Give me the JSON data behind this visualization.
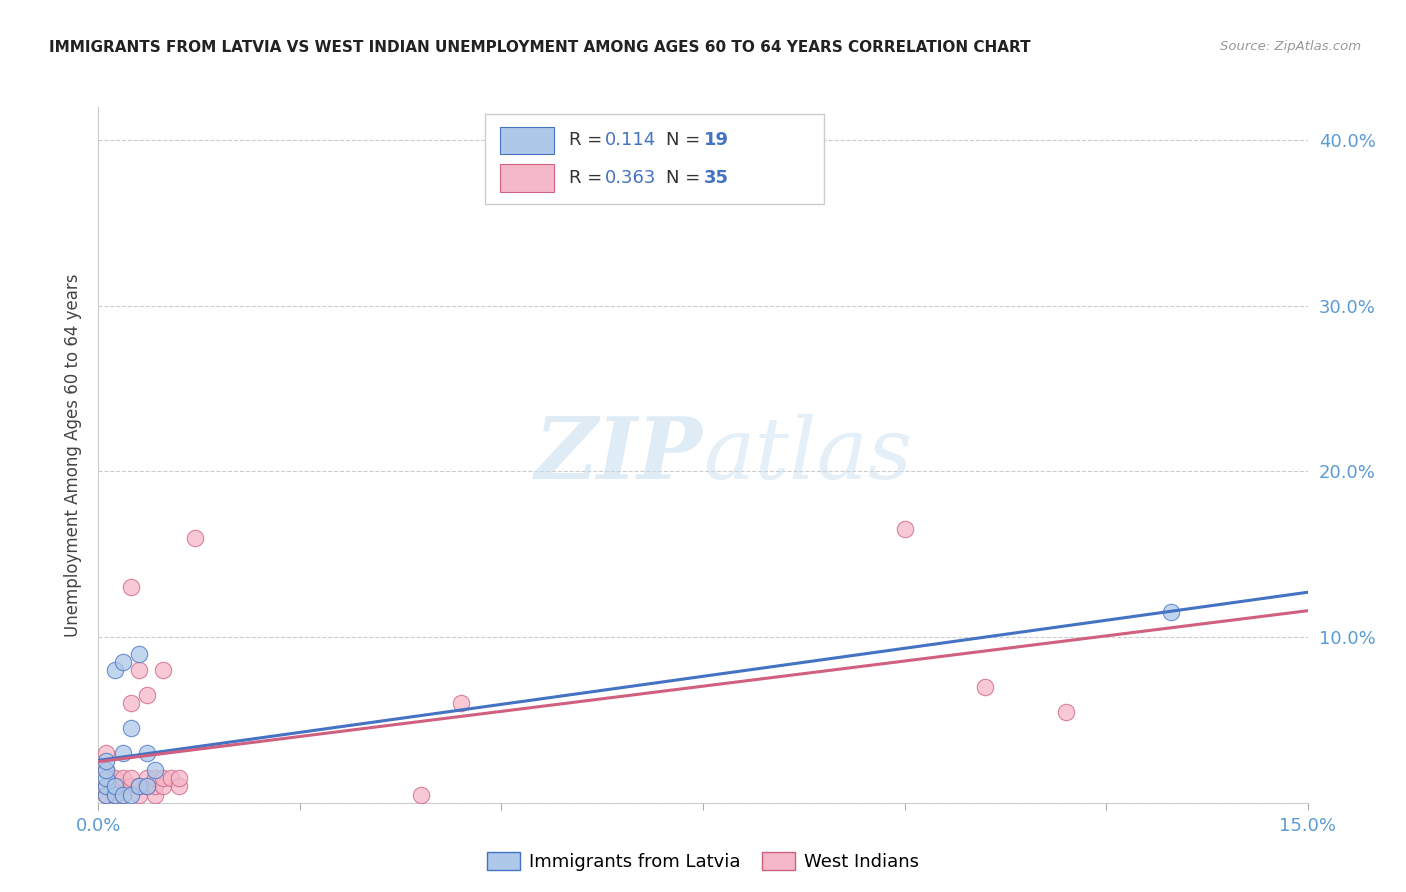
{
  "title": "IMMIGRANTS FROM LATVIA VS WEST INDIAN UNEMPLOYMENT AMONG AGES 60 TO 64 YEARS CORRELATION CHART",
  "source": "Source: ZipAtlas.com",
  "ylabel": "Unemployment Among Ages 60 to 64 years",
  "xlim": [
    0.0,
    0.15
  ],
  "ylim": [
    0.0,
    0.42
  ],
  "xticks": [
    0.0,
    0.025,
    0.05,
    0.075,
    0.1,
    0.125,
    0.15
  ],
  "yticks_right": [
    0.0,
    0.1,
    0.2,
    0.3,
    0.4
  ],
  "ytick_labels_right": [
    "",
    "10.0%",
    "20.0%",
    "30.0%",
    "40.0%"
  ],
  "latvia_R": "0.114",
  "latvia_N": "19",
  "west_indian_R": "0.363",
  "west_indian_N": "35",
  "latvia_color": "#adc8e8",
  "latvia_edge_color": "#4472c4",
  "west_indian_color": "#f5b8c8",
  "west_indian_edge_color": "#d06080",
  "scatter_alpha": 0.75,
  "scatter_size": 140,
  "watermark_zip": "ZIP",
  "watermark_atlas": "atlas",
  "background_color": "#ffffff",
  "latvia_x": [
    0.001,
    0.001,
    0.001,
    0.001,
    0.001,
    0.002,
    0.002,
    0.002,
    0.003,
    0.003,
    0.003,
    0.004,
    0.004,
    0.005,
    0.005,
    0.006,
    0.006,
    0.007,
    0.133
  ],
  "latvia_y": [
    0.005,
    0.01,
    0.015,
    0.02,
    0.025,
    0.005,
    0.01,
    0.08,
    0.005,
    0.085,
    0.03,
    0.045,
    0.005,
    0.01,
    0.09,
    0.01,
    0.03,
    0.02,
    0.115
  ],
  "west_indian_x": [
    0.001,
    0.001,
    0.001,
    0.001,
    0.002,
    0.002,
    0.002,
    0.003,
    0.003,
    0.003,
    0.004,
    0.004,
    0.004,
    0.004,
    0.005,
    0.005,
    0.005,
    0.006,
    0.006,
    0.006,
    0.007,
    0.007,
    0.007,
    0.008,
    0.008,
    0.008,
    0.009,
    0.01,
    0.01,
    0.012,
    0.04,
    0.045,
    0.1,
    0.11,
    0.12
  ],
  "west_indian_y": [
    0.005,
    0.01,
    0.02,
    0.03,
    0.005,
    0.01,
    0.015,
    0.005,
    0.01,
    0.015,
    0.01,
    0.015,
    0.06,
    0.13,
    0.005,
    0.01,
    0.08,
    0.01,
    0.015,
    0.065,
    0.005,
    0.01,
    0.015,
    0.01,
    0.015,
    0.08,
    0.015,
    0.01,
    0.015,
    0.16,
    0.005,
    0.06,
    0.165,
    0.07,
    0.055
  ],
  "legend_text_color": "#333333",
  "legend_value_color": "#4472c4",
  "grid_color": "#cccccc",
  "tick_label_color": "#5b9bd5"
}
